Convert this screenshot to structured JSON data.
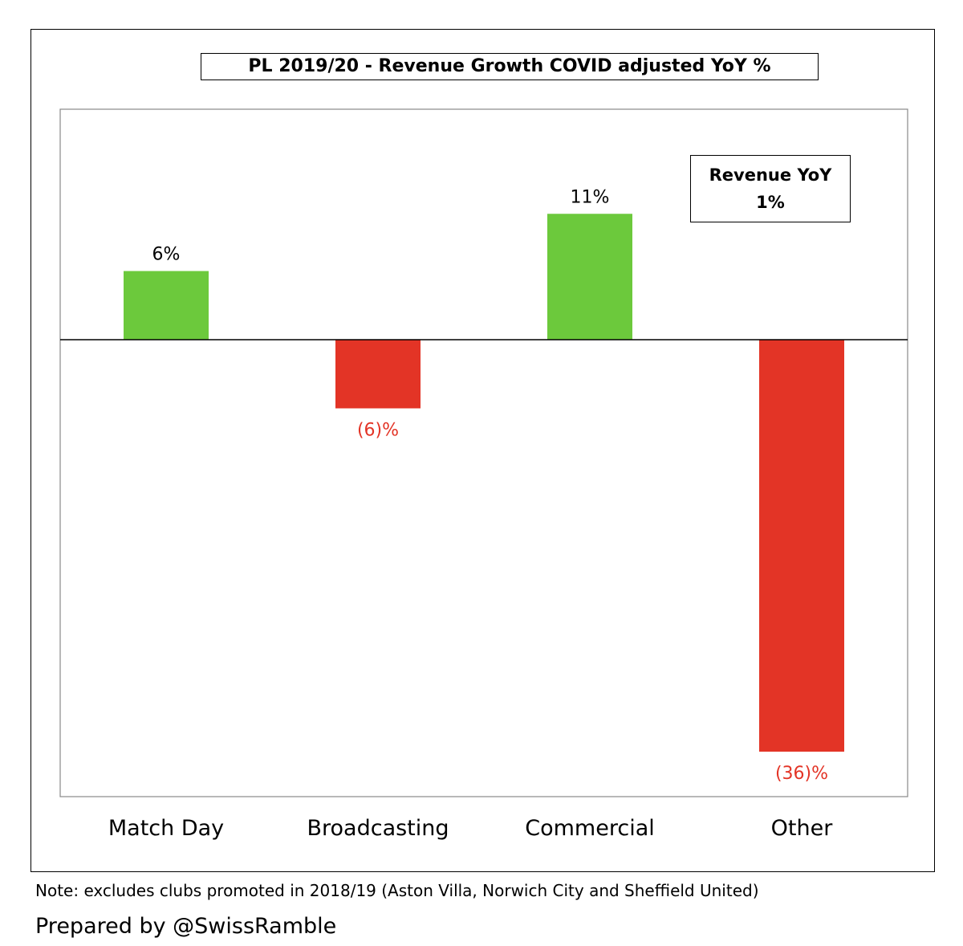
{
  "chart_data": {
    "type": "bar",
    "title": "PL 2019/20 - Revenue Growth COVID adjusted YoY %",
    "categories": [
      "Match Day",
      "Broadcasting",
      "Commercial",
      "Other"
    ],
    "values": [
      6,
      -6,
      11,
      -36
    ],
    "value_labels": [
      "6%",
      "(6)%",
      "11%",
      "(36)%"
    ],
    "ylim": [
      -39,
      20
    ],
    "xlabel": "",
    "ylabel": "",
    "grid": false,
    "colors": {
      "positive": "#6cc93c",
      "negative": "#e33426",
      "negative_label": "#e33426",
      "positive_label": "#000000"
    },
    "annotation": {
      "title": "Revenue YoY",
      "value": "1%"
    }
  },
  "footer": {
    "note": "Note: excludes clubs promoted in 2018/19 (Aston Villa, Norwich City and Sheffield United)",
    "credit": "Prepared by @SwissRamble"
  }
}
